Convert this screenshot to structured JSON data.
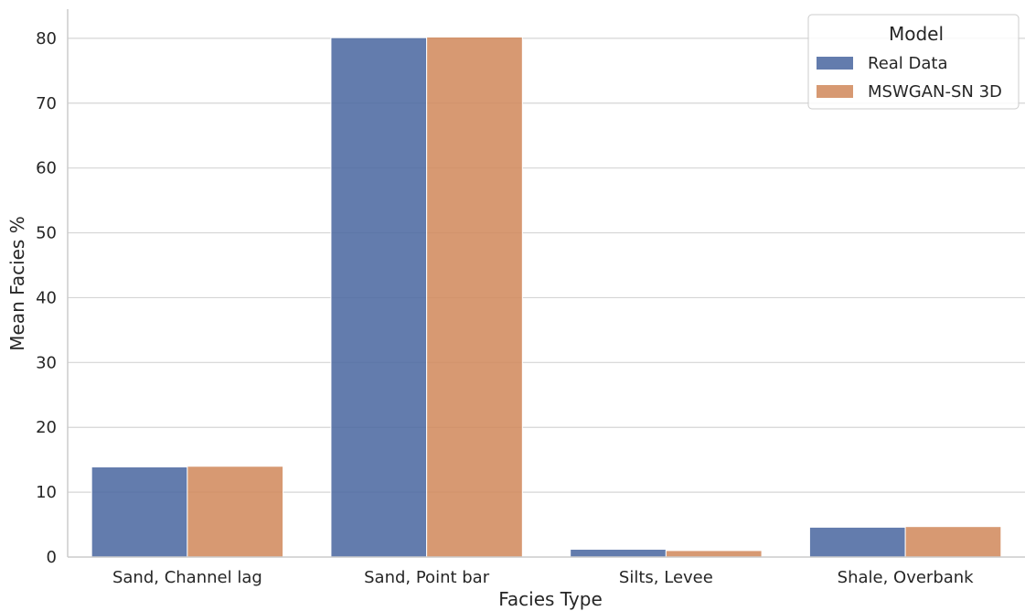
{
  "chart_data": {
    "type": "bar",
    "categories": [
      "Sand, Channel lag",
      "Sand, Point bar",
      "Silts, Levee",
      "Shale, Overbank"
    ],
    "series": [
      {
        "name": "Real Data",
        "color": "#4c68a1",
        "values": [
          13.9,
          80.1,
          1.2,
          4.6
        ]
      },
      {
        "name": "MSWGAN-SN 3D",
        "color": "#d18a5d",
        "values": [
          14.0,
          80.2,
          1.0,
          4.7
        ]
      }
    ],
    "xlabel": "Facies Type",
    "ylabel": "Mean Facies %",
    "ylim": [
      0,
      84.5
    ],
    "yticks": [
      0,
      10,
      20,
      30,
      40,
      50,
      60,
      70,
      80
    ],
    "grid": "horizontal",
    "legend": {
      "title": "Model",
      "placement": "top-right"
    }
  }
}
